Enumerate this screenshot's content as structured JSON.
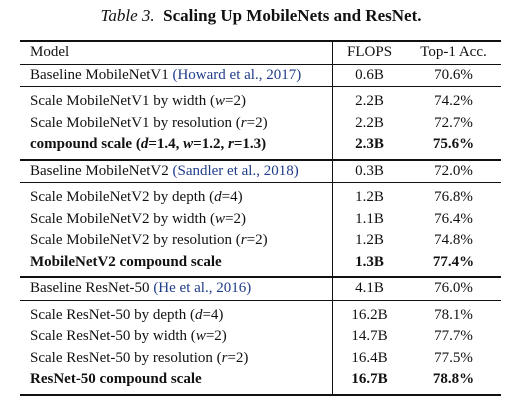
{
  "caption": {
    "number": "Table 3.",
    "text": "Scaling Up MobileNets and ResNet."
  },
  "header": {
    "model": "Model",
    "flops": "FLOPS",
    "acc": "Top-1 Acc."
  },
  "groups": [
    {
      "baseline": {
        "name": "Baseline MobileNetV1",
        "cite": "(Howard et al., 2017)",
        "flops": "0.6B",
        "acc": "70.6%"
      },
      "rows": [
        {
          "pre": "Scale MobileNetV1 by width (",
          "var": "w",
          "post": "=2)",
          "flops": "2.2B",
          "acc": "74.2%"
        },
        {
          "pre": "Scale MobileNetV1 by resolution (",
          "var": "r",
          "post": "=2)",
          "flops": "2.2B",
          "acc": "72.7%"
        }
      ],
      "compound": {
        "pre": "compound scale (",
        "v1": "d",
        "s1": "=1.4, ",
        "v2": "w",
        "s2": "=1.2, ",
        "v3": "r",
        "s3": "=1.3)",
        "flops": "2.3B",
        "acc": "75.6%"
      }
    },
    {
      "baseline": {
        "name": "Baseline MobileNetV2",
        "cite": "(Sandler et al., 2018)",
        "flops": "0.3B",
        "acc": "72.0%"
      },
      "rows": [
        {
          "pre": "Scale MobileNetV2 by depth (",
          "var": "d",
          "post": "=4)",
          "flops": "1.2B",
          "acc": "76.8%"
        },
        {
          "pre": "Scale MobileNetV2 by width (",
          "var": "w",
          "post": "=2)",
          "flops": "1.1B",
          "acc": "76.4%"
        },
        {
          "pre": "Scale MobileNetV2 by resolution (",
          "var": "r",
          "post": "=2)",
          "flops": "1.2B",
          "acc": "74.8%"
        }
      ],
      "compound": {
        "label": "MobileNetV2 compound scale",
        "flops": "1.3B",
        "acc": "77.4%"
      }
    },
    {
      "baseline": {
        "name": "Baseline ResNet-50",
        "cite": "(He et al., 2016)",
        "flops": "4.1B",
        "acc": "76.0%"
      },
      "rows": [
        {
          "pre": "Scale ResNet-50 by depth (",
          "var": "d",
          "post": "=4)",
          "flops": "16.2B",
          "acc": "78.1%"
        },
        {
          "pre": "Scale ResNet-50 by width (",
          "var": "w",
          "post": "=2)",
          "flops": "14.7B",
          "acc": "77.7%"
        },
        {
          "pre": "Scale ResNet-50 by resolution (",
          "var": "r",
          "post": "=2)",
          "flops": "16.4B",
          "acc": "77.5%"
        }
      ],
      "compound": {
        "label": "ResNet-50 compound scale",
        "flops": "16.7B",
        "acc": "78.8%"
      }
    }
  ]
}
